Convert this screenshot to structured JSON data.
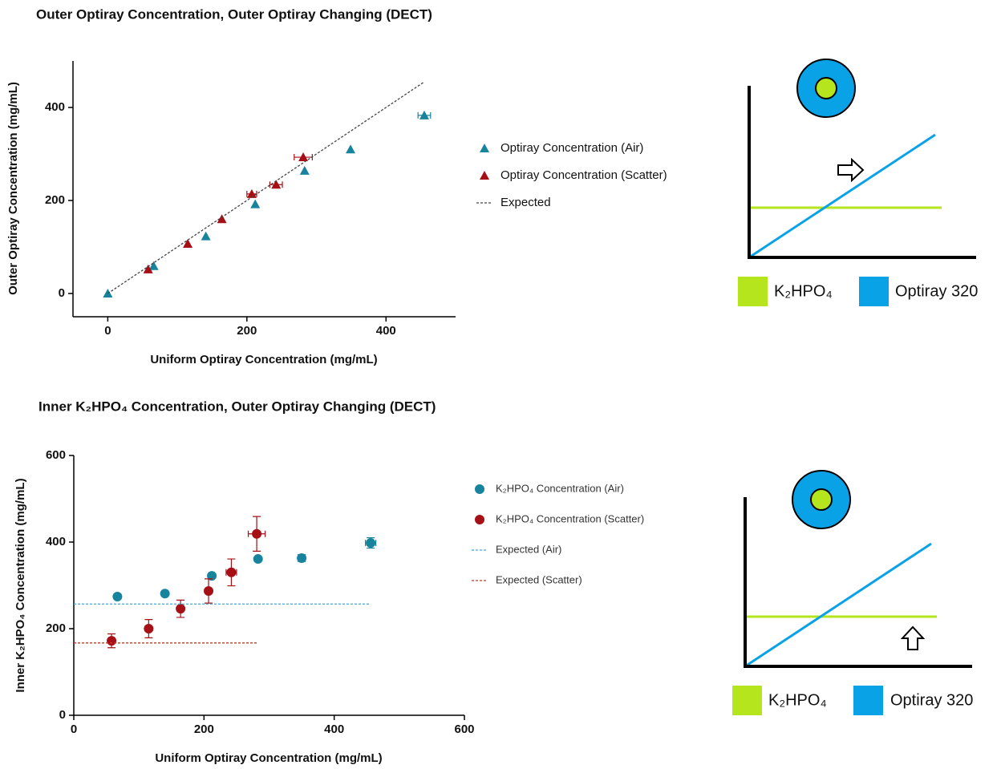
{
  "chart_data": [
    {
      "type": "scatter",
      "title": "Outer Optiray Concentration, Outer Optiray Changing (DECT)",
      "x_label": "Uniform Optiray Concentration (mg/mL)",
      "y_label": "Outer Optiray Concentration (mg/mL)",
      "xlim": [
        -50,
        500
      ],
      "xticks": [
        0,
        200,
        400
      ],
      "ylim": [
        -50,
        500
      ],
      "yticks": [
        0,
        200,
        400
      ],
      "series": [
        {
          "name": "Optiray Concentration (Air)",
          "color": "#17839c",
          "marker": "triangle",
          "x": [
            0,
            66,
            141,
            212,
            283,
            349,
            455
          ],
          "values": [
            0,
            59,
            123,
            192,
            264,
            310,
            383
          ],
          "x_errors": [
            0,
            0,
            0,
            0,
            0,
            0,
            9
          ]
        },
        {
          "name": "Optiray Concentration (Scatter)",
          "color": "#a50f15",
          "marker": "triangle",
          "x": [
            58,
            115,
            164,
            207,
            242,
            281
          ],
          "values": [
            52,
            107,
            160,
            214,
            234,
            293
          ],
          "x_errors": [
            0,
            0,
            0,
            7,
            9,
            13
          ]
        },
        {
          "name": "Expected",
          "color": "#444444",
          "marker": "line",
          "x": [
            0,
            455
          ],
          "values": [
            0,
            455
          ]
        }
      ]
    },
    {
      "type": "scatter",
      "title": "Inner K₂HPO₄ Concentration, Outer Optiray Changing (DECT)",
      "x_label": "Uniform Optiray Concentration (mg/mL)",
      "y_label": "Inner K₂HPO₄ Concentration (mg/mL)",
      "xlim": [
        0,
        600
      ],
      "xticks": [
        0,
        200,
        400,
        600
      ],
      "ylim": [
        0,
        600
      ],
      "yticks": [
        0,
        200,
        400,
        600
      ],
      "series": [
        {
          "name": "K₂HPO₄ Concentration (Air)",
          "color": "#17839c",
          "marker": "circle",
          "x": [
            67,
            140,
            212,
            283,
            350,
            456
          ],
          "values": [
            274,
            281,
            322,
            361,
            363,
            398
          ],
          "x_errors": [
            0,
            0,
            0,
            0,
            5,
            8
          ],
          "y_errors": [
            0,
            0,
            0,
            0,
            8,
            12
          ]
        },
        {
          "name": "K₂HPO₄ Concentration (Scatter)",
          "color": "#a50f15",
          "marker": "circle",
          "x": [
            58,
            115,
            164,
            207,
            242,
            281
          ],
          "values": [
            172,
            200,
            246,
            287,
            330,
            419
          ],
          "x_errors": [
            0,
            0,
            0,
            0,
            8,
            13
          ],
          "y_errors": [
            16,
            21,
            20,
            28,
            31,
            40
          ]
        },
        {
          "name": "Expected (Air)",
          "color": "#3fa9d9",
          "marker": "line",
          "x": [
            0,
            456
          ],
          "values": [
            257,
            257
          ]
        },
        {
          "name": "Expected (Scatter)",
          "color": "#c0392b",
          "marker": "line",
          "x": [
            0,
            281
          ],
          "values": [
            167,
            167
          ]
        }
      ]
    }
  ],
  "schematics": [
    {
      "legend": [
        "K₂HPO₄",
        "Optiray 320"
      ]
    },
    {
      "legend": [
        "K₂HPO₄",
        "Optiray 320"
      ]
    }
  ]
}
